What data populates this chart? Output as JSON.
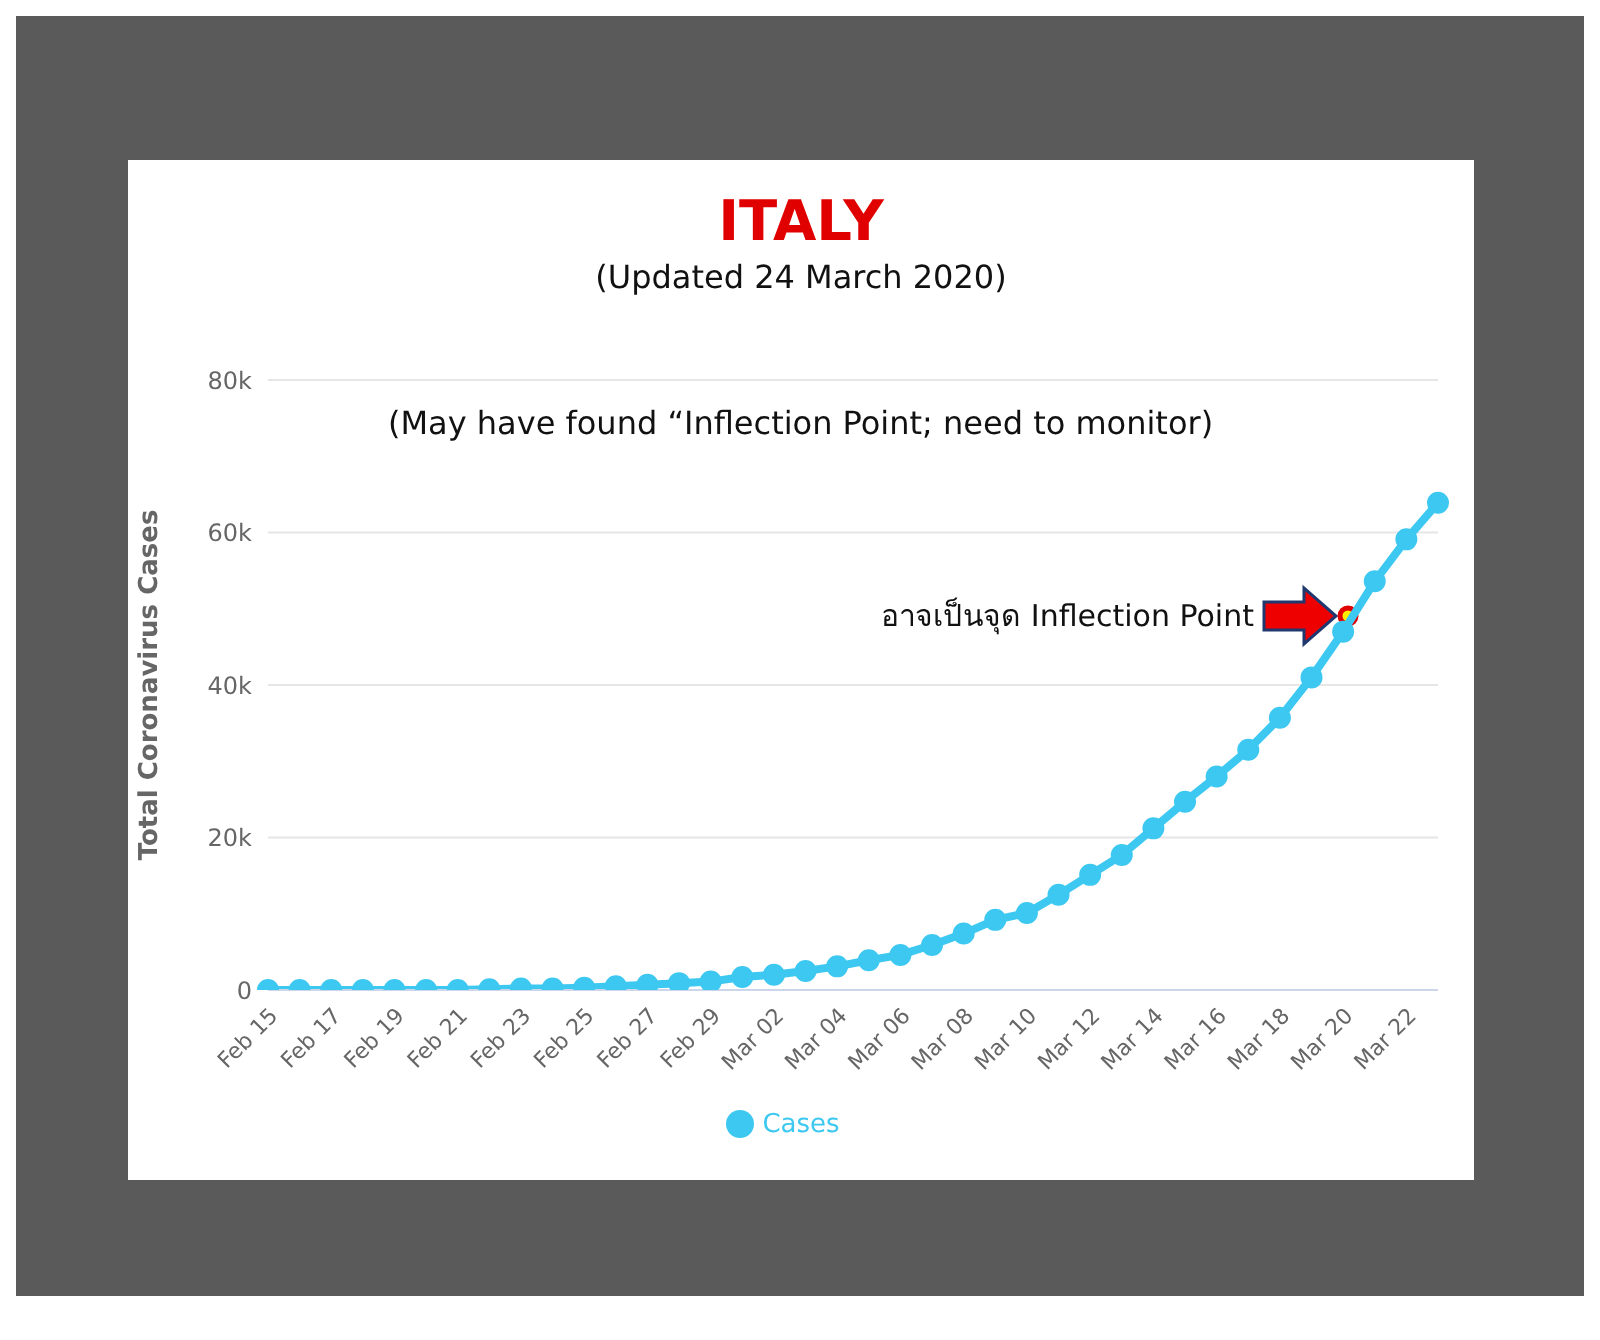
{
  "chart_data": {
    "type": "line",
    "title": "ITALY",
    "subtitle": "(Updated 24 March 2020)",
    "ylabel": "Total Coronavirus Cases",
    "categories": [
      "Feb 15",
      null,
      "Feb 17",
      null,
      "Feb 19",
      null,
      "Feb 21",
      null,
      "Feb 23",
      null,
      "Feb 25",
      null,
      "Feb 27",
      null,
      "Feb 29",
      null,
      "Mar 02",
      null,
      "Mar 04",
      null,
      "Mar 06",
      null,
      "Mar 08",
      null,
      "Mar 10",
      null,
      "Mar 12",
      null,
      "Mar 14",
      null,
      "Mar 16",
      null,
      "Mar 18",
      null,
      "Mar 20",
      null,
      "Mar 22",
      null
    ],
    "series": [
      {
        "name": "Cases",
        "color": "#3cc8f0",
        "values": [
          0,
          0,
          0,
          0,
          0,
          0,
          0,
          100,
          200,
          200,
          300,
          500,
          700,
          900,
          1100,
          1700,
          2000,
          2500,
          3100,
          3900,
          4600,
          5900,
          7400,
          9200,
          10100,
          12500,
          15100,
          17700,
          21200,
          24700,
          28000,
          31500,
          35700,
          41000,
          47000,
          53600,
          59100,
          63900
        ]
      }
    ],
    "ylim": [
      0,
      80000
    ],
    "yticks": [
      0,
      {
        "value": 20000,
        "label": "20k"
      },
      {
        "value": 40000,
        "label": "40k"
      },
      {
        "value": 60000,
        "label": "60k"
      },
      {
        "value": 80000,
        "label": "80k"
      }
    ],
    "grid": "y",
    "legend": "bottom",
    "marker": "circle",
    "line_style": "solid",
    "annotations": [
      "(May have found “Inflection Point; need to monitor)",
      "อาจเป็นจุด Inflection Point"
    ]
  }
}
